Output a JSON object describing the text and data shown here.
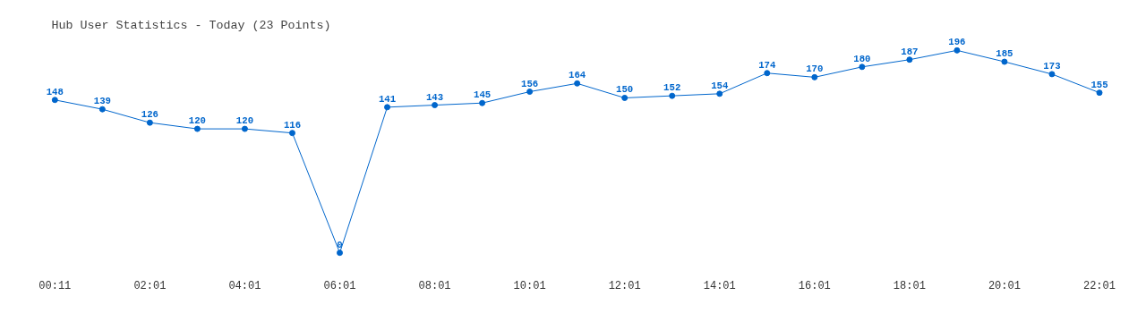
{
  "chart_data": {
    "type": "line",
    "title": "Hub User Statistics - Today (23 Points)",
    "categories": [
      "00:11",
      null,
      "02:01",
      null,
      "04:01",
      null,
      "06:01",
      null,
      "08:01",
      null,
      "10:01",
      null,
      "12:01",
      null,
      "14:01",
      null,
      "16:01",
      null,
      "18:01",
      null,
      "20:01",
      null,
      "22:01"
    ],
    "series": [
      {
        "color": "#0066cc",
        "values": [
          148,
          139,
          126,
          120,
          120,
          116,
          0,
          141,
          143,
          145,
          156,
          164,
          150,
          152,
          154,
          174,
          170,
          180,
          187,
          196,
          185,
          173,
          155
        ]
      }
    ],
    "tick_labels": "x",
    "marker": "circle",
    "line_style": "solid",
    "data_labels": true,
    "grid": false
  }
}
